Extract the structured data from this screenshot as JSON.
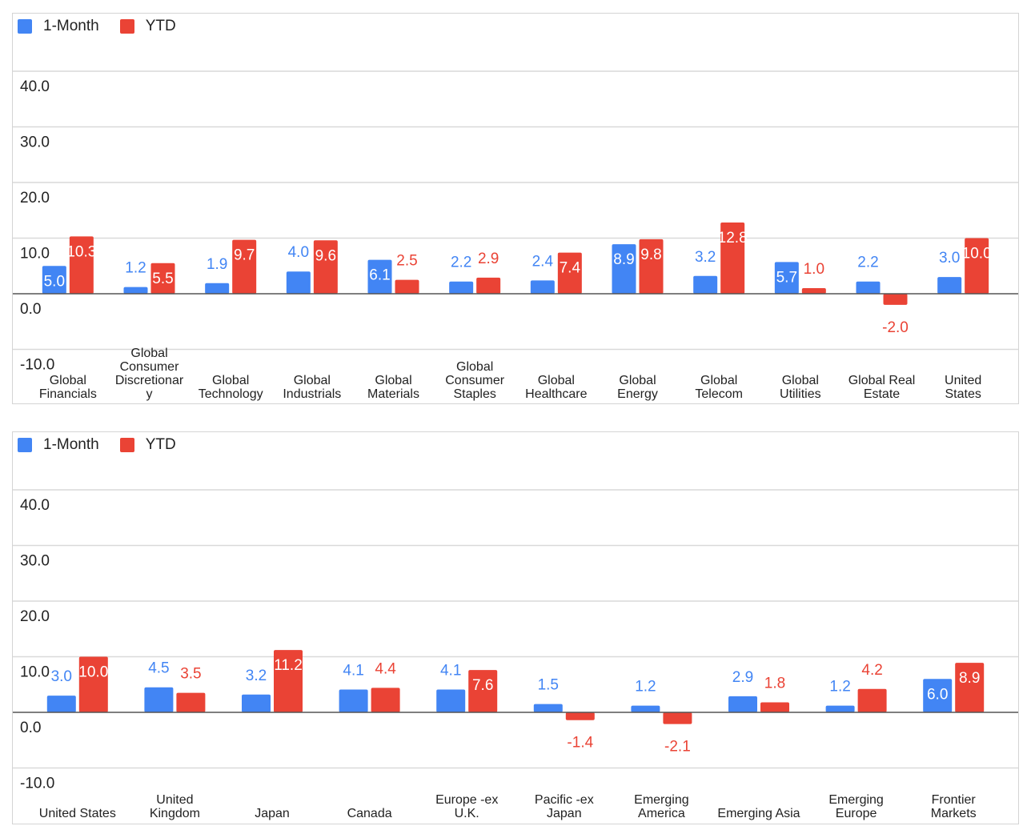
{
  "legend": {
    "series_1": "1-Month",
    "series_2": "YTD"
  },
  "colors": {
    "series_1": "#4285f4",
    "series_2": "#ea4335",
    "grid": "#d9d9d9",
    "zero_line": "#555555",
    "text": "#222222"
  },
  "chart_data": [
    {
      "type": "bar",
      "categories": [
        [
          "Global",
          "Financials"
        ],
        [
          "Global",
          "Consumer",
          "Discretionar",
          "y"
        ],
        [
          "Global",
          "Technology"
        ],
        [
          "Global",
          "Industrials"
        ],
        [
          "Global",
          "Materials"
        ],
        [
          "Global",
          "Consumer",
          "Staples"
        ],
        [
          "Global",
          "Healthcare"
        ],
        [
          "Global",
          "Energy"
        ],
        [
          "Global",
          "Telecom"
        ],
        [
          "Global",
          "Utilities"
        ],
        [
          "Global Real",
          "Estate"
        ],
        [
          "United",
          "States"
        ]
      ],
      "series": [
        {
          "name": "1-Month",
          "values": [
            5.0,
            1.2,
            1.9,
            4.0,
            6.1,
            2.2,
            2.4,
            8.9,
            3.2,
            5.7,
            2.2,
            3.0
          ],
          "labels": [
            "5.0",
            "1.2",
            "1.9",
            "4.0",
            "6.1",
            "2.2",
            "2.4",
            "8.9",
            "3.2",
            "5.7",
            "2.2",
            "3.0"
          ]
        },
        {
          "name": "YTD",
          "values": [
            10.3,
            5.5,
            9.7,
            9.6,
            2.5,
            2.9,
            7.4,
            9.8,
            12.8,
            1.0,
            -2.0,
            10.0
          ],
          "labels": [
            "10.3",
            "5.5",
            "9.7",
            "9.6",
            "2.5",
            "2.9",
            "7.4",
            "9.8",
            "12.8",
            "1.0",
            "-2.0",
            "10.0"
          ]
        }
      ],
      "y_ticks": [
        "-10.0",
        "0.0",
        "10.0",
        "20.0",
        "30.0",
        "40.0"
      ],
      "ylim": [
        -10,
        40
      ],
      "grid": true,
      "legend_position": "top-left"
    },
    {
      "type": "bar",
      "categories": [
        [
          "United States"
        ],
        [
          "United",
          "Kingdom"
        ],
        [
          "Japan"
        ],
        [
          "Canada"
        ],
        [
          "Europe -ex",
          "U.K."
        ],
        [
          "Pacific -ex",
          "Japan"
        ],
        [
          "Emerging",
          "America"
        ],
        [
          "Emerging Asia"
        ],
        [
          "Emerging",
          "Europe"
        ],
        [
          "Frontier",
          "Markets"
        ]
      ],
      "series": [
        {
          "name": "1-Month",
          "values": [
            3.0,
            4.5,
            3.2,
            4.1,
            4.1,
            1.5,
            1.2,
            2.9,
            1.2,
            6.0
          ],
          "labels": [
            "3.0",
            "4.5",
            "3.2",
            "4.1",
            "4.1",
            "1.5",
            "1.2",
            "2.9",
            "1.2",
            "6.0"
          ]
        },
        {
          "name": "YTD",
          "values": [
            10.0,
            3.5,
            11.2,
            4.4,
            7.6,
            -1.4,
            -2.1,
            1.8,
            4.2,
            8.9
          ],
          "labels": [
            "10.0",
            "3.5",
            "11.2",
            "4.4",
            "7.6",
            "-1.4",
            "-2.1",
            "1.8",
            "4.2",
            "8.9"
          ]
        }
      ],
      "y_ticks": [
        "-10.0",
        "0.0",
        "10.0",
        "20.0",
        "30.0",
        "40.0"
      ],
      "ylim": [
        -10,
        40
      ],
      "grid": true,
      "legend_position": "top-left"
    }
  ]
}
